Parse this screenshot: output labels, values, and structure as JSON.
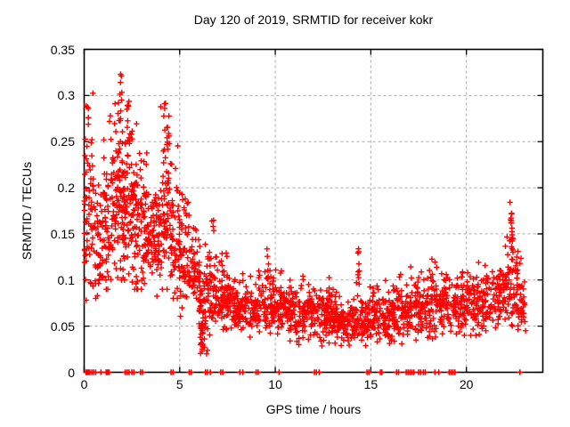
{
  "colors": {
    "marker": "#ff0000",
    "grid": "#a8a8a8",
    "axis": "#000000",
    "text": "#000000",
    "background": "#ffffff"
  },
  "chart_data": {
    "type": "scatter",
    "title": "Day 120 of 2019, SRMTID for receiver kokr",
    "xlabel": "GPS time / hours",
    "ylabel": "SRMTID / TECUs",
    "xlim": [
      0,
      24
    ],
    "ylim": [
      0,
      0.35
    ],
    "grid": true,
    "legend_position": "none",
    "marker": "plus",
    "x_ticks": [
      {
        "value": 0,
        "label": "0"
      },
      {
        "value": 5,
        "label": "5"
      },
      {
        "value": 10,
        "label": "10"
      },
      {
        "value": 15,
        "label": "15"
      },
      {
        "value": 20,
        "label": "20"
      }
    ],
    "y_ticks": [
      {
        "value": 0,
        "label": "0"
      },
      {
        "value": 0.05,
        "label": "0.05"
      },
      {
        "value": 0.1,
        "label": "0.1"
      },
      {
        "value": 0.15,
        "label": "0.15"
      },
      {
        "value": 0.2,
        "label": "0.2"
      },
      {
        "value": 0.25,
        "label": "0.25"
      },
      {
        "value": 0.3,
        "label": "0.3"
      },
      {
        "value": 0.35,
        "label": "0.35"
      }
    ],
    "seed": 20190430,
    "band_segment_columns": [
      "x_start",
      "x_end",
      "count",
      "y_center",
      "y_spread",
      "y_min",
      "y_max"
    ],
    "band_segments": [
      [
        0.0,
        0.5,
        60,
        0.16,
        0.05,
        0.065,
        0.32
      ],
      [
        0.5,
        1.0,
        55,
        0.14,
        0.04,
        0.08,
        0.22
      ],
      [
        1.0,
        1.5,
        60,
        0.16,
        0.05,
        0.09,
        0.28
      ],
      [
        1.5,
        2.0,
        70,
        0.19,
        0.055,
        0.1,
        0.325
      ],
      [
        2.0,
        2.5,
        75,
        0.18,
        0.055,
        0.1,
        0.31
      ],
      [
        2.5,
        3.0,
        70,
        0.16,
        0.05,
        0.09,
        0.27
      ],
      [
        3.0,
        3.5,
        60,
        0.15,
        0.04,
        0.09,
        0.24
      ],
      [
        3.5,
        4.0,
        60,
        0.15,
        0.04,
        0.08,
        0.22
      ],
      [
        4.0,
        4.5,
        65,
        0.17,
        0.055,
        0.09,
        0.3
      ],
      [
        4.5,
        5.0,
        60,
        0.15,
        0.05,
        0.08,
        0.25
      ],
      [
        5.0,
        5.5,
        55,
        0.12,
        0.04,
        0.06,
        0.2
      ],
      [
        5.5,
        6.0,
        50,
        0.11,
        0.03,
        0.05,
        0.18
      ],
      [
        6.0,
        6.5,
        60,
        0.08,
        0.035,
        0.02,
        0.14
      ],
      [
        6.5,
        7.0,
        50,
        0.09,
        0.03,
        0.04,
        0.165
      ],
      [
        7.0,
        7.5,
        55,
        0.08,
        0.025,
        0.04,
        0.14
      ],
      [
        7.5,
        8.0,
        50,
        0.075,
        0.02,
        0.04,
        0.12
      ],
      [
        8.0,
        9.0,
        90,
        0.07,
        0.02,
        0.035,
        0.12
      ],
      [
        9.0,
        10.0,
        90,
        0.07,
        0.02,
        0.035,
        0.13
      ],
      [
        10.0,
        11.0,
        95,
        0.068,
        0.018,
        0.03,
        0.115
      ],
      [
        11.0,
        12.0,
        95,
        0.065,
        0.018,
        0.03,
        0.11
      ],
      [
        12.0,
        13.0,
        95,
        0.06,
        0.018,
        0.028,
        0.105
      ],
      [
        13.0,
        14.0,
        95,
        0.055,
        0.015,
        0.025,
        0.1
      ],
      [
        14.0,
        15.0,
        95,
        0.055,
        0.016,
        0.025,
        0.11
      ],
      [
        15.0,
        16.0,
        90,
        0.06,
        0.016,
        0.03,
        0.1
      ],
      [
        16.0,
        17.0,
        90,
        0.065,
        0.018,
        0.03,
        0.11
      ],
      [
        17.0,
        18.0,
        90,
        0.07,
        0.02,
        0.035,
        0.12
      ],
      [
        18.0,
        19.0,
        85,
        0.07,
        0.02,
        0.035,
        0.13
      ],
      [
        19.0,
        20.0,
        85,
        0.072,
        0.02,
        0.04,
        0.12
      ],
      [
        20.0,
        21.0,
        85,
        0.075,
        0.02,
        0.04,
        0.12
      ],
      [
        21.0,
        22.0,
        85,
        0.08,
        0.02,
        0.045,
        0.13
      ],
      [
        22.0,
        22.7,
        65,
        0.095,
        0.03,
        0.05,
        0.16
      ],
      [
        22.7,
        23.1,
        35,
        0.08,
        0.025,
        0.045,
        0.13
      ]
    ],
    "outlier_cluster_columns": [
      "x_center",
      "x_width",
      "count",
      "y_min",
      "y_max"
    ],
    "outlier_clusters": [
      [
        0.15,
        0.2,
        7,
        0.25,
        0.305
      ],
      [
        1.85,
        0.25,
        12,
        0.26,
        0.325
      ],
      [
        2.35,
        0.2,
        8,
        0.25,
        0.3
      ],
      [
        4.3,
        0.25,
        10,
        0.24,
        0.3
      ],
      [
        6.15,
        0.12,
        22,
        0.02,
        0.055
      ],
      [
        6.75,
        0.15,
        4,
        0.15,
        0.165
      ],
      [
        9.6,
        0.1,
        7,
        0.1,
        0.135
      ],
      [
        14.35,
        0.1,
        9,
        0.095,
        0.14
      ],
      [
        22.35,
        0.2,
        18,
        0.13,
        0.185
      ]
    ],
    "zero_value_points_x": [
      0.1,
      0.15,
      0.22,
      0.3,
      0.4,
      0.5,
      0.6,
      0.88,
      1.15,
      1.2,
      1.25,
      1.3,
      2.15,
      2.25,
      2.35,
      2.5,
      2.6,
      2.95,
      3.05,
      4.55,
      4.65,
      5.5,
      5.6,
      6.35,
      6.45,
      6.6,
      7.15,
      7.25,
      8.15,
      8.3,
      9.0,
      9.1,
      10.2,
      12.05,
      12.15,
      12.3,
      14.8,
      14.9,
      15.5,
      15.58,
      16.35,
      16.45,
      16.85,
      16.95,
      17.05,
      17.15,
      17.25,
      17.5,
      17.6,
      17.75,
      17.85,
      18.35,
      18.55,
      19.1,
      19.2,
      19.3,
      19.4,
      22.8
    ]
  }
}
